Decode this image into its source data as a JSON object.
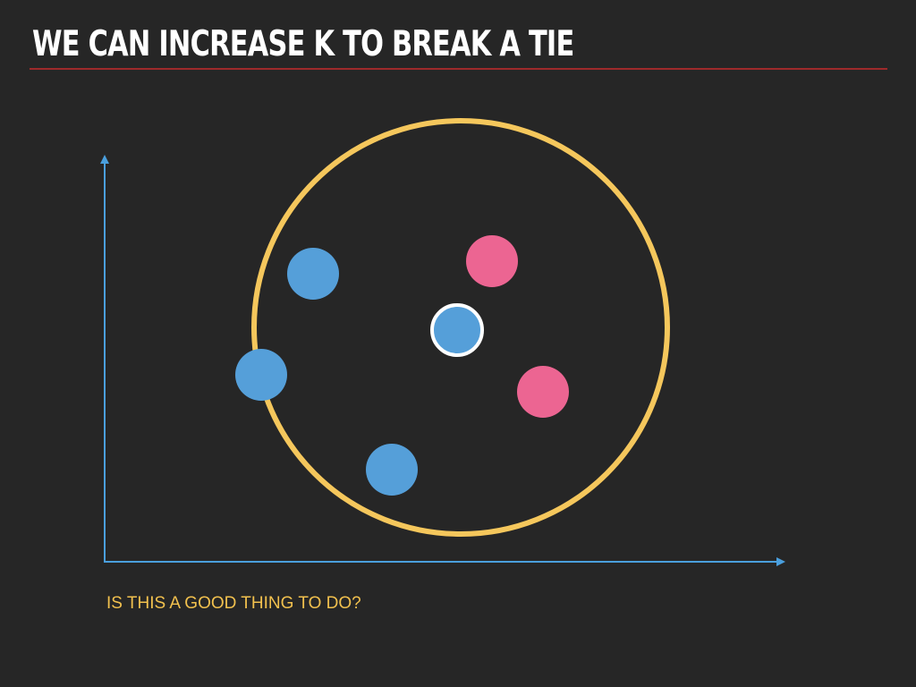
{
  "slide": {
    "title": "WE CAN INCREASE K TO BREAK A TIE",
    "question": "IS THIS A GOOD THING TO DO?"
  },
  "colors": {
    "background": "#262626",
    "title_text": "#ffffff",
    "title_rule": "#9e2a2b",
    "axis": "#4a9fdd",
    "neighborhood_circle": "#f5c75c",
    "class_blue": "#559fd9",
    "class_pink": "#ec6592",
    "query_outline": "#ffffff",
    "question_text": "#f2c14e"
  },
  "points": [
    {
      "name": "blue-point-1",
      "class": "blue"
    },
    {
      "name": "blue-point-2",
      "class": "blue"
    },
    {
      "name": "blue-point-3",
      "class": "blue"
    },
    {
      "name": "pink-point-1",
      "class": "pink"
    },
    {
      "name": "pink-point-2",
      "class": "pink"
    },
    {
      "name": "query-point",
      "class": "blue",
      "is_query": true
    }
  ]
}
